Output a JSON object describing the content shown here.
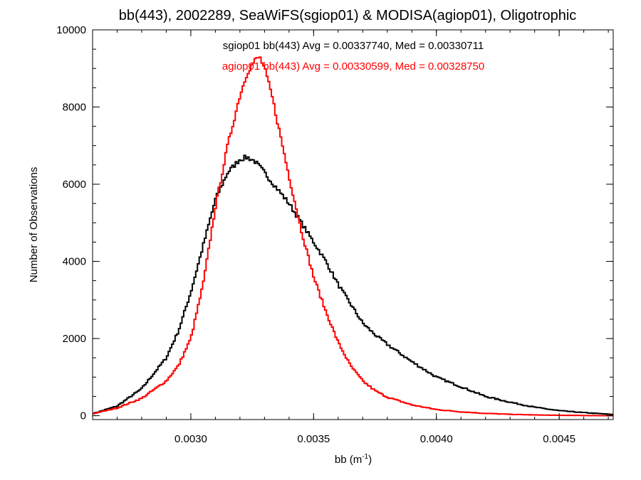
{
  "chart_data": {
    "type": "line",
    "step": true,
    "title": "bb(443), 2002289, SeaWiFS(sgiop01) & MODISA(agiop01), Oligotrophic",
    "xlabel_main": "bb (m",
    "xlabel_sup": "-1",
    "xlabel_tail": ")",
    "ylabel": "Number of Observations",
    "xlim": [
      0.0026,
      0.00472
    ],
    "ylim": [
      -100,
      10000
    ],
    "xticks": [
      0.003,
      0.0035,
      0.004,
      0.0045
    ],
    "xtick_labels": [
      "0.0030",
      "0.0035",
      "0.0040",
      "0.0045"
    ],
    "yticks": [
      0,
      2000,
      4000,
      6000,
      8000,
      10000
    ],
    "ytick_labels": [
      "0",
      "2000",
      "4000",
      "6000",
      "8000",
      "10000"
    ],
    "grid": false,
    "annotations": [
      {
        "text": "sgiop01 bb(443) Avg = 0.00337740, Med = 0.00330711",
        "color": "#000000"
      },
      {
        "text": "agiop01 bb(443) Avg = 0.00330599, Med = 0.00328750",
        "color": "#ff0000"
      }
    ],
    "series": [
      {
        "color": "#000000",
        "x": [
          0.0026,
          0.0027,
          0.0028,
          0.0029,
          0.00295,
          0.003,
          0.00305,
          0.0031,
          0.00315,
          0.0032,
          0.00323,
          0.00326,
          0.0033,
          0.00335,
          0.0034,
          0.00345,
          0.0035,
          0.00355,
          0.0036,
          0.00365,
          0.0037,
          0.00375,
          0.0038,
          0.0039,
          0.004,
          0.0041,
          0.0042,
          0.0043,
          0.0044,
          0.0045,
          0.0046,
          0.00472
        ],
        "y": [
          50,
          250,
          700,
          1500,
          2200,
          3200,
          4400,
          5600,
          6300,
          6650,
          6700,
          6600,
          6300,
          5900,
          5500,
          5000,
          4500,
          4000,
          3400,
          2900,
          2400,
          2100,
          1850,
          1400,
          1000,
          750,
          500,
          350,
          220,
          130,
          80,
          30
        ]
      },
      {
        "color": "#ff0000",
        "x": [
          0.0026,
          0.0027,
          0.0028,
          0.0029,
          0.00295,
          0.003,
          0.00305,
          0.0031,
          0.00315,
          0.0032,
          0.00323,
          0.00326,
          0.00328,
          0.0033,
          0.00333,
          0.00336,
          0.0034,
          0.00345,
          0.0035,
          0.00355,
          0.0036,
          0.00365,
          0.0037,
          0.00375,
          0.0038,
          0.0039,
          0.004,
          0.0041,
          0.0042,
          0.0043,
          0.0044,
          0.0045,
          0.0046,
          0.00472
        ],
        "y": [
          50,
          200,
          450,
          900,
          1300,
          2000,
          3400,
          5400,
          7000,
          8300,
          8900,
          9200,
          9300,
          9000,
          8300,
          7400,
          6200,
          4800,
          3600,
          2700,
          1900,
          1300,
          900,
          650,
          480,
          280,
          160,
          100,
          60,
          35,
          20,
          10,
          5,
          0
        ]
      }
    ]
  }
}
